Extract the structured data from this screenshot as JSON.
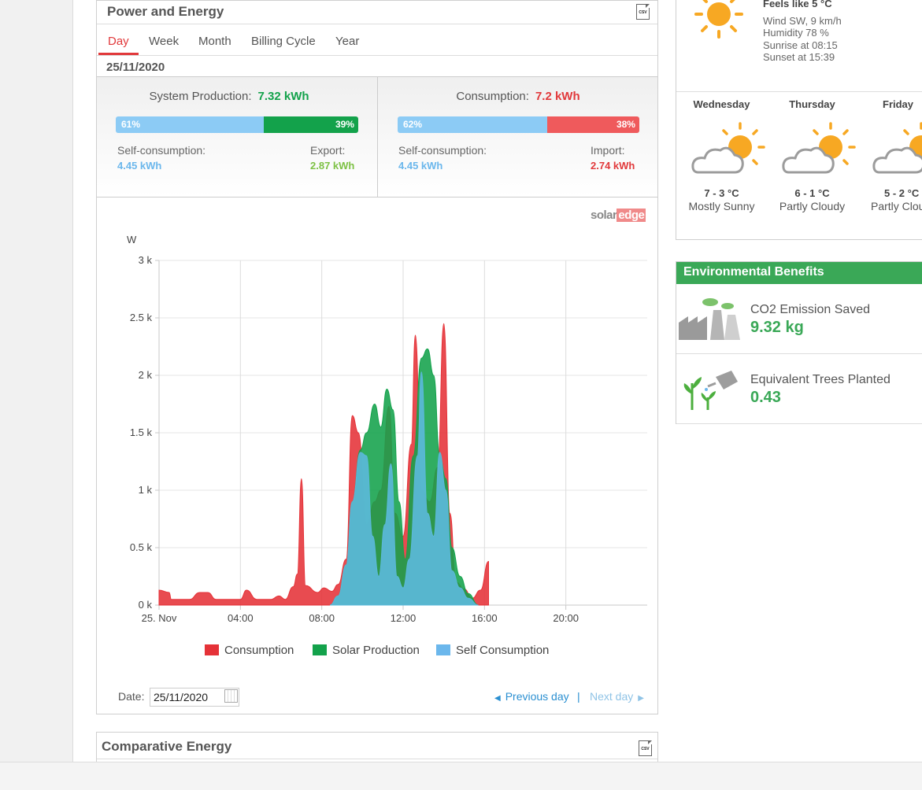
{
  "power_energy": {
    "title": "Power and Energy",
    "csv_label": "CSV",
    "tabs": [
      "Day",
      "Week",
      "Month",
      "Billing Cycle",
      "Year"
    ],
    "active_tab": "Day",
    "date": "25/11/2020",
    "production": {
      "label": "System Production:",
      "value": "7.32 kWh",
      "self_pct_label": "61%",
      "export_pct_label": "39%",
      "self_pct": 61,
      "export_pct": 39,
      "self_label": "Self-consumption:",
      "self_value": "4.45 kWh",
      "export_label": "Export:",
      "export_value": "2.87 kWh"
    },
    "consumption": {
      "label": "Consumption:",
      "value": "7.2 kWh",
      "self_pct_label": "62%",
      "import_pct_label": "38%",
      "self_pct": 62,
      "import_pct": 38,
      "self_label": "Self-consumption:",
      "self_value": "4.45 kWh",
      "import_label": "Import:",
      "import_value": "2.74 kWh"
    },
    "brand_solar": "solar",
    "brand_edge": "edge",
    "legend": [
      "Consumption",
      "Solar Production",
      "Self Consumption"
    ],
    "date_label": "Date:",
    "date_value": "25/11/2020",
    "prev_day": "Previous day",
    "next_day": "Next day",
    "separator": "|"
  },
  "chart_data": {
    "type": "area",
    "ylabel": "W",
    "ylim": [
      0,
      3000
    ],
    "xlim": [
      0,
      24
    ],
    "y_ticks": [
      "0 k",
      "0.5 k",
      "1 k",
      "1.5 k",
      "2 k",
      "2.5 k",
      "3 k"
    ],
    "x_ticks": [
      "25. Nov",
      "04:00",
      "08:00",
      "12:00",
      "16:00",
      "20:00"
    ],
    "grid": true,
    "legend_position": "bottom",
    "x_unit": "hour of day",
    "series": [
      {
        "name": "Consumption",
        "color": "#e53238",
        "points": [
          [
            0,
            130
          ],
          [
            0.5,
            110
          ],
          [
            0.6,
            50
          ],
          [
            1.5,
            50
          ],
          [
            2,
            110
          ],
          [
            2.4,
            110
          ],
          [
            2.8,
            50
          ],
          [
            4,
            50
          ],
          [
            4.3,
            130
          ],
          [
            4.8,
            50
          ],
          [
            5.5,
            50
          ],
          [
            5.9,
            80
          ],
          [
            6.2,
            50
          ],
          [
            6.6,
            160
          ],
          [
            6.8,
            270
          ],
          [
            7,
            1100
          ],
          [
            7.2,
            170
          ],
          [
            7.8,
            110
          ],
          [
            8.1,
            150
          ],
          [
            8.5,
            120
          ],
          [
            8.8,
            180
          ],
          [
            9.2,
            400
          ],
          [
            9.5,
            1650
          ],
          [
            9.8,
            1500
          ],
          [
            10.2,
            700
          ],
          [
            10.6,
            900
          ],
          [
            10.9,
            1000
          ],
          [
            11.3,
            1730
          ],
          [
            11.6,
            800
          ],
          [
            12,
            600
          ],
          [
            12.4,
            1400
          ],
          [
            12.6,
            2350
          ],
          [
            12.9,
            1000
          ],
          [
            13.3,
            900
          ],
          [
            13.7,
            1200
          ],
          [
            14,
            2450
          ],
          [
            14.3,
            800
          ],
          [
            14.6,
            200
          ],
          [
            15,
            140
          ],
          [
            15.4,
            60
          ],
          [
            15.8,
            130
          ],
          [
            16.2,
            380
          ],
          [
            16.2,
            0
          ]
        ]
      },
      {
        "name": "Solar Production",
        "color": "#13a24b",
        "points": [
          [
            8.4,
            0
          ],
          [
            8.8,
            80
          ],
          [
            9.2,
            350
          ],
          [
            9.5,
            900
          ],
          [
            9.9,
            1350
          ],
          [
            10.2,
            1500
          ],
          [
            10.6,
            1750
          ],
          [
            10.9,
            1550
          ],
          [
            11.2,
            1880
          ],
          [
            11.5,
            1700
          ],
          [
            11.8,
            900
          ],
          [
            12.1,
            400
          ],
          [
            12.5,
            1300
          ],
          [
            12.9,
            2150
          ],
          [
            13.2,
            2230
          ],
          [
            13.5,
            2000
          ],
          [
            13.8,
            1300
          ],
          [
            14.1,
            1100
          ],
          [
            14.4,
            500
          ],
          [
            14.8,
            250
          ],
          [
            15.2,
            100
          ],
          [
            15.7,
            0
          ]
        ]
      },
      {
        "name": "Self Consumption",
        "color": "#5bb8d9",
        "points": [
          [
            8.4,
            0
          ],
          [
            8.8,
            80
          ],
          [
            9.2,
            350
          ],
          [
            9.5,
            900
          ],
          [
            9.9,
            1330
          ],
          [
            10.2,
            1300
          ],
          [
            10.5,
            600
          ],
          [
            10.8,
            250
          ],
          [
            11.1,
            700
          ],
          [
            11.4,
            1230
          ],
          [
            11.7,
            250
          ],
          [
            12,
            150
          ],
          [
            12.3,
            400
          ],
          [
            12.7,
            1300
          ],
          [
            12.9,
            2030
          ],
          [
            13.2,
            800
          ],
          [
            13.5,
            600
          ],
          [
            13.8,
            1330
          ],
          [
            14.1,
            1000
          ],
          [
            14.4,
            300
          ],
          [
            14.8,
            150
          ],
          [
            15.2,
            60
          ],
          [
            15.7,
            0
          ]
        ]
      }
    ]
  },
  "weather": {
    "feels_like": "Feels like 5 °C",
    "wind": "Wind SW, 9 km/h",
    "humidity": "Humidity 78 %",
    "sunrise": "Sunrise at 08:15",
    "sunset": "Sunset at 15:39",
    "forecast": [
      {
        "day": "Wednesday",
        "temp": "7 - 3 °C",
        "desc": "Mostly Sunny"
      },
      {
        "day": "Thursday",
        "temp": "6 - 1 °C",
        "desc": "Partly Cloudy"
      },
      {
        "day": "Friday",
        "temp": "5 - 2 °C",
        "desc": "Partly Clou"
      }
    ]
  },
  "environment": {
    "title": "Environmental Benefits",
    "co2_label": "CO2 Emission Saved",
    "co2_value": "9.32 kg",
    "trees_label": "Equivalent Trees Planted",
    "trees_value": "0.43"
  },
  "comparative": {
    "title": "Comparative Energy",
    "csv_label": "CSV"
  },
  "colors": {
    "red": "#e1393b",
    "green": "#13a24b",
    "blue": "#8ccbf5",
    "env_green": "#3aa857",
    "link": "#2a8fd1"
  }
}
